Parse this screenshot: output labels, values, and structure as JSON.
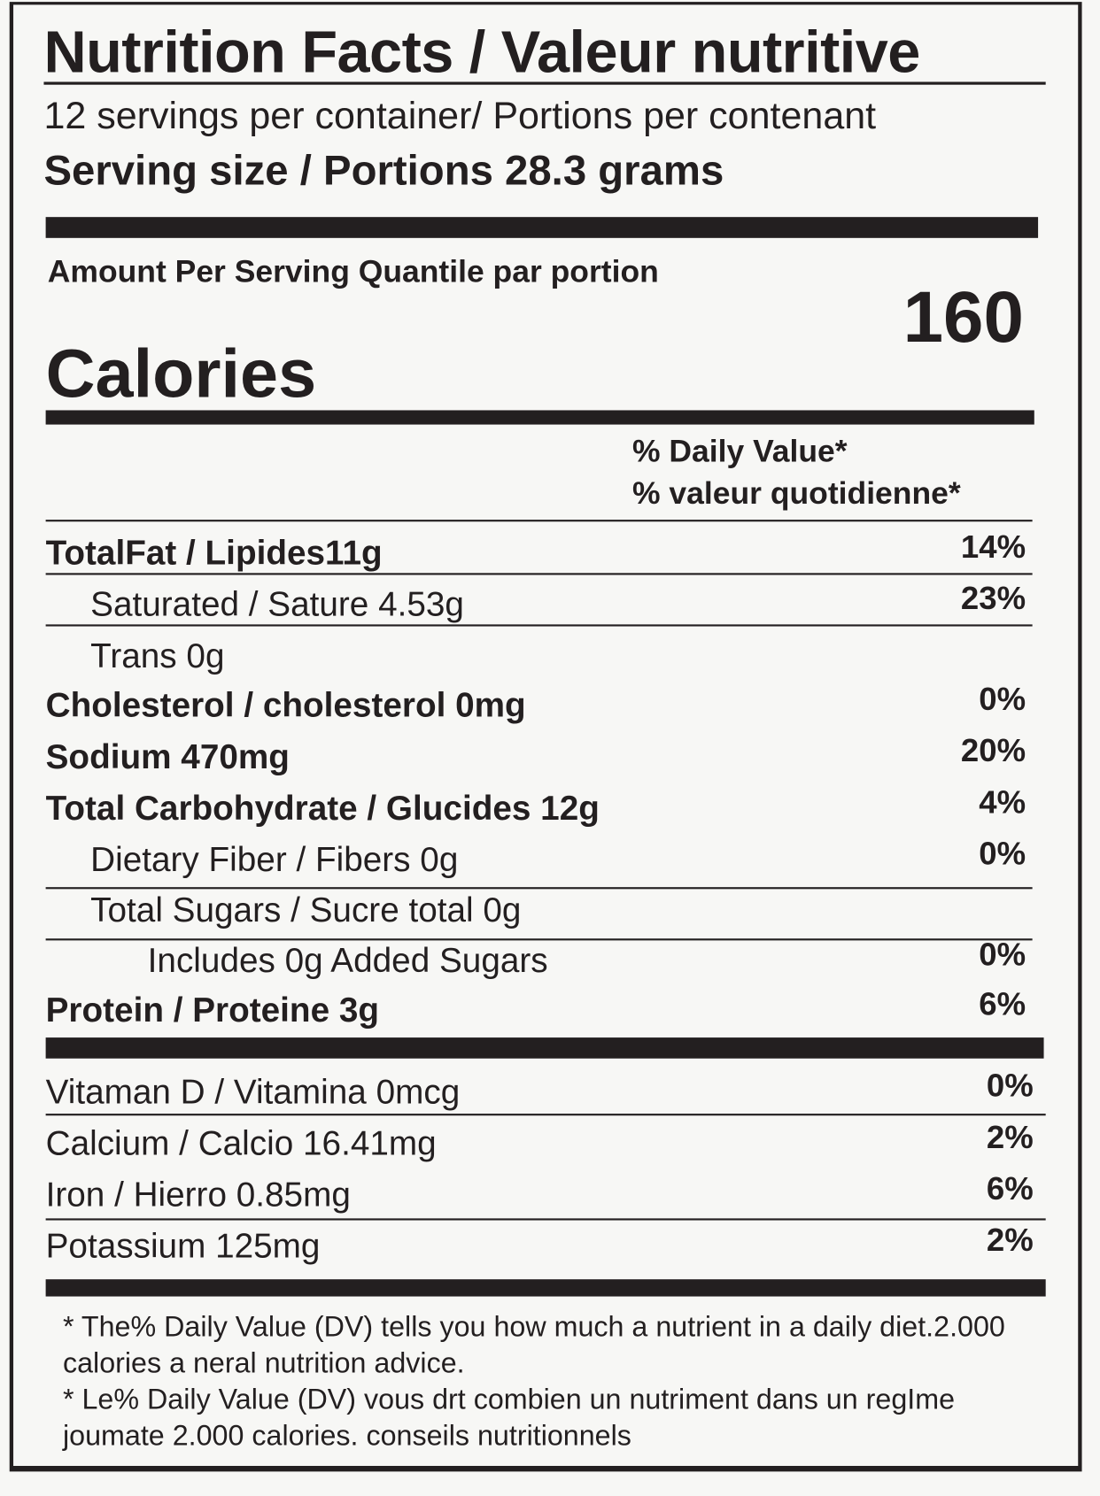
{
  "label": {
    "title": "Nutrition Facts / Valeur nutritive",
    "servings_per_container": "12 servings per container/ Portions per contenant",
    "serving_size": "Serving size / Portions 28.3 grams",
    "amount_per_serving": "Amount Per Serving Quantile par portion",
    "calories_label": "Calories",
    "calories_value": "160",
    "daily_value_header_en": "% Daily Value*",
    "daily_value_header_fr": "% valeur quotidienne*",
    "nutrients": [
      {
        "label": "TotalFat / Lipides11g",
        "percent": "14%"
      },
      {
        "label": "Saturated / Sature 4.53g",
        "percent": "23%"
      },
      {
        "label": "Trans 0g",
        "percent": ""
      },
      {
        "label": "Cholesterol / cholesterol 0mg",
        "percent": "0%"
      },
      {
        "label": "Sodium 470mg",
        "percent": "20%"
      },
      {
        "label": "Total Carbohydrate / Glucides 12g",
        "percent": "4%"
      },
      {
        "label": "Dietary Fiber / Fibers 0g",
        "percent": "0%"
      },
      {
        "label": "Total Sugars / Sucre total  0g",
        "percent": ""
      },
      {
        "label": "Includes 0g Added Sugars",
        "percent": "0%"
      },
      {
        "label": "Protein / Proteine 3g",
        "percent": "6%"
      }
    ],
    "vitamins": [
      {
        "label": "Vitaman D / Vitamina  0mcg",
        "percent": "0%"
      },
      {
        "label": "Calcium / Calcio 16.41mg",
        "percent": "2%"
      },
      {
        "label": "Iron / Hierro 0.85mg",
        "percent": "6%"
      },
      {
        "label": "Potassium 125mg",
        "percent": "2%"
      }
    ],
    "footnote_en": "* The%  Daily Value (DV) tells you how much a nutrient in a daily diet.2.000 calories a neral nutrition advice.",
    "footnote_fr": "* Le% Daily Value (DV) vous drt combien un nutriment  dans un regIme joumate 2.000 calories. conseils nutritionnels"
  }
}
